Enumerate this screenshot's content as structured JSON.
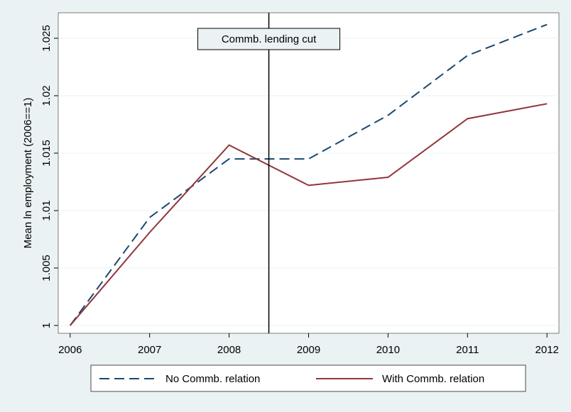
{
  "chart_data": {
    "type": "line",
    "y_label": "Mean ln employment (2006==1)",
    "x": [
      2006,
      2007,
      2008,
      2009,
      2010,
      2011,
      2012
    ],
    "series": [
      {
        "name": "No Commb. relation",
        "color": "#1a476f",
        "dash": true,
        "values": [
          1.0,
          1.0094,
          1.0145,
          1.0145,
          1.0183,
          1.0235,
          1.0262
        ]
      },
      {
        "name": "With Commb. relation",
        "color": "#90353b",
        "dash": false,
        "values": [
          1.0,
          1.0081,
          1.0157,
          1.0122,
          1.0129,
          1.018,
          1.0193
        ]
      }
    ],
    "xlim": [
      2005.85,
      2012.15
    ],
    "xticks": [
      2006,
      2007,
      2008,
      2009,
      2010,
      2011,
      2012
    ],
    "ylim": [
      0.99932,
      1.02722
    ],
    "yticks": [
      1,
      1.005,
      1.01,
      1.015,
      1.02,
      1.025
    ],
    "grid": true,
    "legend": "bottom",
    "annotation": {
      "text": "Commb. lending cut",
      "x": 2008.5
    }
  }
}
